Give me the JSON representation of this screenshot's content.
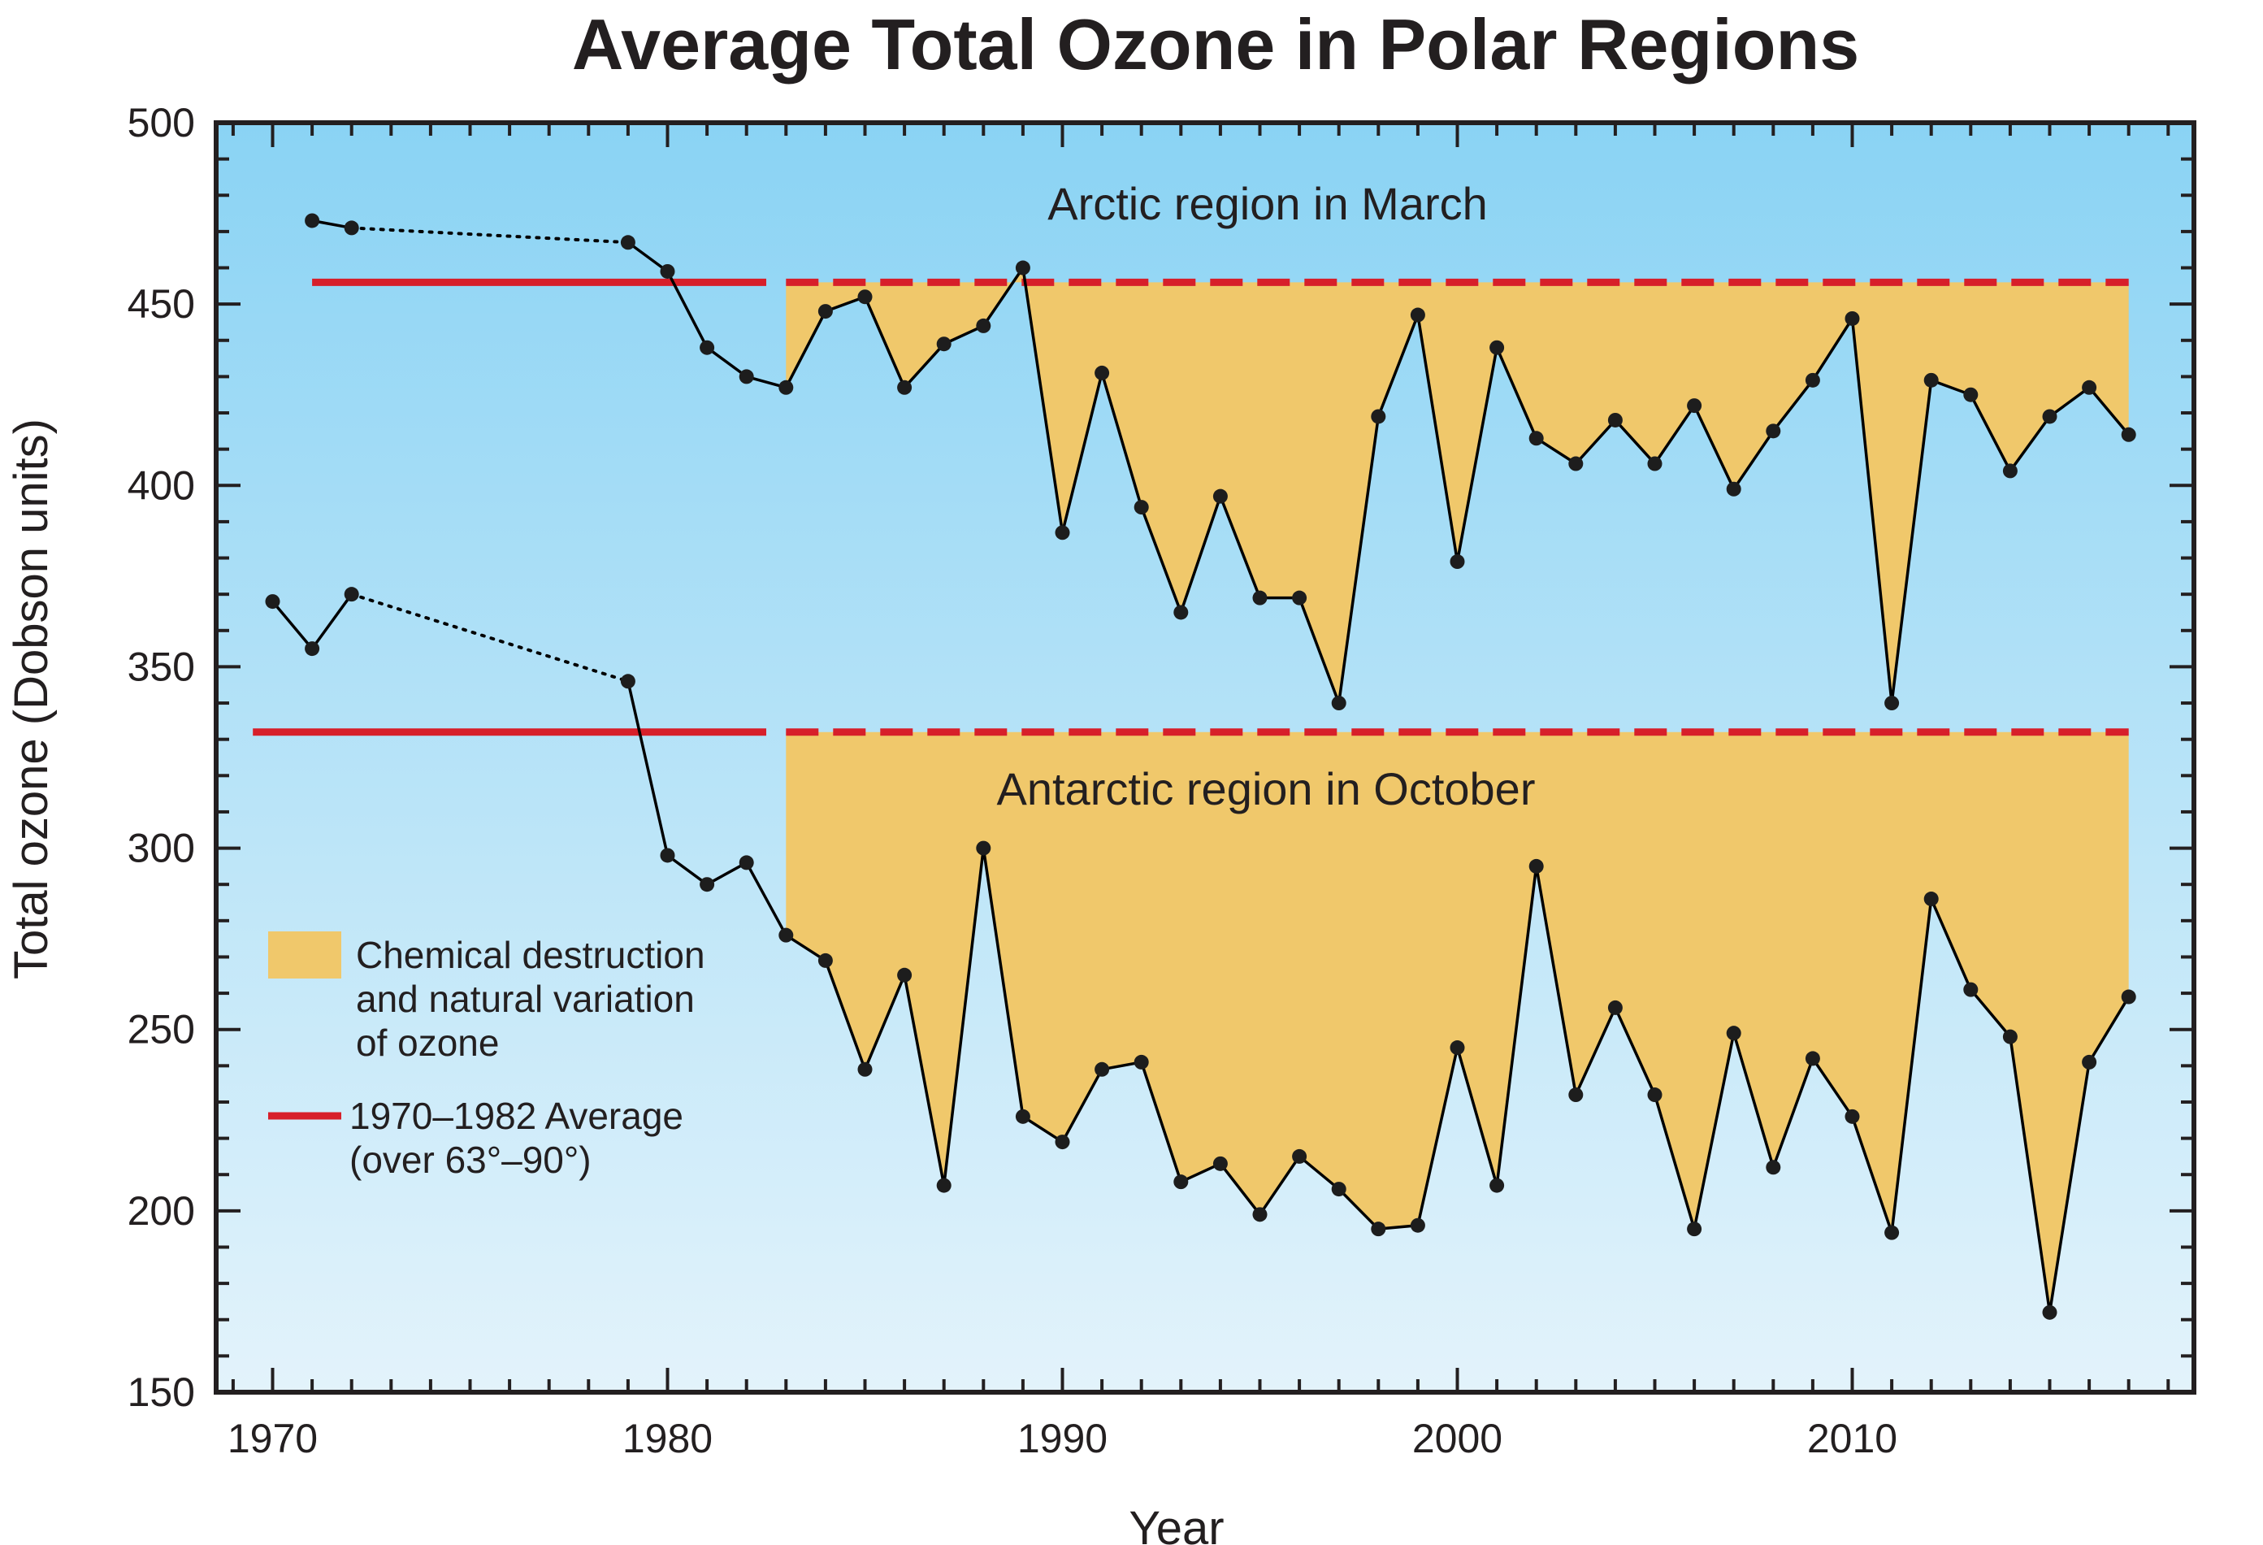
{
  "chart_data": {
    "type": "line",
    "title": "Average Total Ozone in Polar Regions",
    "xlabel": "Year",
    "ylabel": "Total ozone (Dobson units)",
    "xlim": [
      1968.5,
      2018.5
    ],
    "ylim": [
      150,
      500
    ],
    "x_ticks": [
      1970,
      1980,
      1990,
      2000,
      2010
    ],
    "y_ticks": [
      150,
      200,
      250,
      300,
      350,
      400,
      450,
      500
    ],
    "grid": false,
    "colors": {
      "background_top": "#8ad3f4",
      "background_bottom": "#e3f3fb",
      "fill": "#f0c86b",
      "average_line": "#d71f2a",
      "series_line": "#000000",
      "point": "#1d1d1d"
    },
    "fill_start_year": 1983,
    "series": [
      {
        "name": "Arctic region in March",
        "average": 456,
        "average_solid_range": [
          1971,
          1982.5
        ],
        "average_dashed_range": [
          1983,
          2017
        ],
        "gap": [
          1972,
          1979
        ],
        "x": [
          1971,
          1972,
          1979,
          1980,
          1981,
          1982,
          1983,
          1984,
          1985,
          1986,
          1987,
          1988,
          1989,
          1990,
          1991,
          1992,
          1993,
          1994,
          1995,
          1996,
          1997,
          1998,
          1999,
          2000,
          2001,
          2002,
          2003,
          2004,
          2005,
          2006,
          2007,
          2008,
          2009,
          2010,
          2011,
          2012,
          2013,
          2014,
          2015,
          2016,
          2017
        ],
        "y": [
          473,
          471,
          467,
          459,
          438,
          430,
          427,
          448,
          452,
          427,
          439,
          444,
          460,
          387,
          431,
          394,
          365,
          397,
          369,
          369,
          340,
          419,
          447,
          379,
          438,
          413,
          406,
          418,
          406,
          422,
          399,
          415,
          429,
          446,
          340,
          429,
          425,
          404,
          419,
          427,
          414
        ]
      },
      {
        "name": "Antarctic region in October",
        "average": 332,
        "average_solid_range": [
          1969.5,
          1982.5
        ],
        "average_dashed_range": [
          1983,
          2017
        ],
        "gap": [
          1972,
          1979
        ],
        "x": [
          1970,
          1971,
          1972,
          1979,
          1980,
          1981,
          1982,
          1983,
          1984,
          1985,
          1986,
          1987,
          1988,
          1989,
          1990,
          1991,
          1992,
          1993,
          1994,
          1995,
          1996,
          1997,
          1998,
          1999,
          2000,
          2001,
          2002,
          2003,
          2004,
          2005,
          2006,
          2007,
          2008,
          2009,
          2010,
          2011,
          2012,
          2013,
          2014,
          2015,
          2016,
          2017
        ],
        "y": [
          368,
          355,
          370,
          346,
          298,
          290,
          296,
          276,
          269,
          239,
          265,
          207,
          300,
          226,
          219,
          239,
          241,
          208,
          213,
          199,
          215,
          206,
          195,
          196,
          245,
          207,
          295,
          232,
          256,
          232,
          195,
          249,
          212,
          242,
          226,
          194,
          286,
          261,
          248,
          172,
          241,
          259
        ]
      }
    ],
    "legend": {
      "placement": "center-left",
      "fill_label_lines": [
        "Chemical destruction",
        "and natural variation",
        "of ozone"
      ],
      "average_label_lines": [
        "1970–1982 Average",
        "(over 63°–90°)"
      ]
    }
  }
}
